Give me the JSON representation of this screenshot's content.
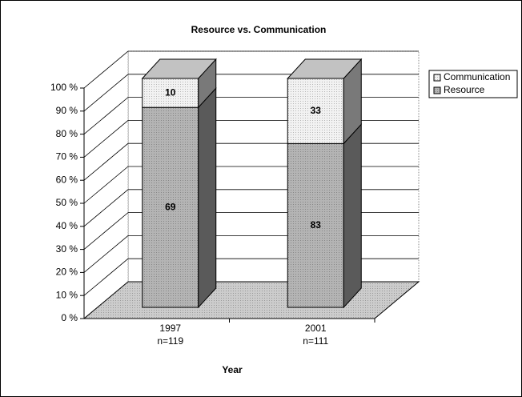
{
  "chart_data": {
    "type": "bar3d",
    "stacking": "percent",
    "title": "Resource vs. Communication",
    "x_label": "Year",
    "categories": [
      "1997",
      "2001"
    ],
    "category_notes": [
      "n=119",
      "n=111"
    ],
    "series": [
      {
        "name": "Resource",
        "color": "#b4b4b4",
        "values": [
          69,
          83
        ]
      },
      {
        "name": "Communication",
        "color": "#f2f2f2",
        "values": [
          10,
          33
        ]
      }
    ],
    "ylim": [
      0,
      100
    ],
    "yticks": [
      {
        "value": 0,
        "label": "0 %"
      },
      {
        "value": 10,
        "label": "10 %"
      },
      {
        "value": 20,
        "label": "20 %"
      },
      {
        "value": 30,
        "label": "30 %"
      },
      {
        "value": 40,
        "label": "40 %"
      },
      {
        "value": 50,
        "label": "50 %"
      },
      {
        "value": 60,
        "label": "60 %"
      },
      {
        "value": 70,
        "label": "70 %"
      },
      {
        "value": 80,
        "label": "80 %"
      },
      {
        "value": 90,
        "label": "90 %"
      },
      {
        "value": 100,
        "label": "100 %"
      }
    ],
    "grid": true,
    "legend": "right"
  }
}
